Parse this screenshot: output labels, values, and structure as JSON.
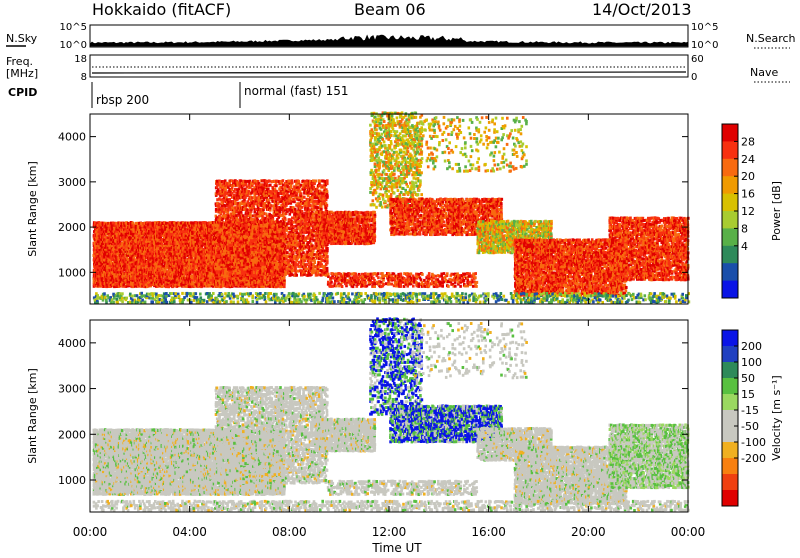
{
  "header": {
    "station": "Hokkaido (fitACF)",
    "beam": "Beam 06",
    "date": "14/Oct/2013"
  },
  "strips": {
    "nsky_label": "N.Sky",
    "nsky_ticks": [
      "10^5",
      "10^0"
    ],
    "nsearch_label": "N.Search",
    "nsearch_ticks": [
      "10^5",
      "10^0"
    ],
    "freq_label": "Freq.",
    "freq_unit": "[MHz]",
    "freq_ticks": [
      "18",
      "8"
    ],
    "nave_label": "Nave",
    "nave_ticks": [
      "60",
      "0"
    ],
    "cpid_label": "CPID",
    "cpid_modes": [
      "rbsp 200",
      "normal (fast) 151"
    ]
  },
  "chart_data": [
    {
      "type": "heatmap",
      "quantity": "Power",
      "ylabel": "Slant Range [km]",
      "ylim": [
        300,
        4500
      ],
      "yticks": [
        "1000",
        "2000",
        "3000",
        "4000"
      ],
      "xlim": [
        "00:00",
        "24:00"
      ],
      "colorbar_label": "Power [dB]",
      "colorbar_ticks": [
        "28",
        "24",
        "20",
        "16",
        "12",
        "8",
        "4"
      ],
      "colorbar_colors": [
        "#e00000",
        "#f83010",
        "#f86a10",
        "#f09a00",
        "#d8c000",
        "#a8cc30",
        "#58b048",
        "#2e8a5a",
        "#1a4faa",
        "#0a14e6"
      ]
    },
    {
      "type": "heatmap",
      "quantity": "Velocity",
      "ylabel": "Slant Range [km]",
      "ylim": [
        300,
        4500
      ],
      "yticks": [
        "1000",
        "2000",
        "3000",
        "4000"
      ],
      "xlim": [
        "00:00",
        "24:00"
      ],
      "colorbar_label": "Velocity [m s⁻¹]",
      "colorbar_ticks": [
        "200",
        "100",
        "50",
        "15",
        "-15",
        "-50",
        "-100",
        "-200"
      ],
      "colorbar_colors": [
        "#0a14e6",
        "#2040c0",
        "#2e8a5a",
        "#58c040",
        "#9ad860",
        "#c8c8c0",
        "#c8c8c0",
        "#f0b020",
        "#f88010",
        "#f04010",
        "#e00000"
      ]
    }
  ],
  "xaxis": {
    "label": "Time UT",
    "ticks": [
      "00:00",
      "04:00",
      "08:00",
      "12:00",
      "16:00",
      "20:00",
      "00:00"
    ]
  }
}
